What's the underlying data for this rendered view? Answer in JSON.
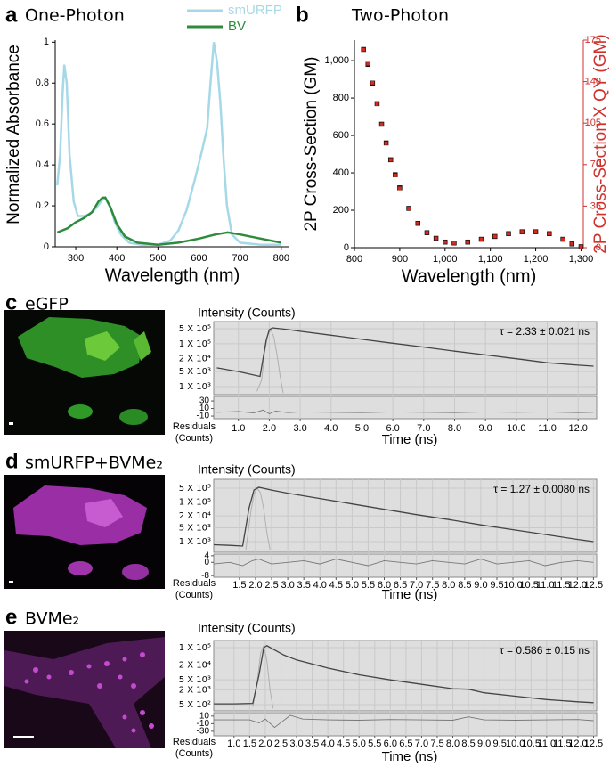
{
  "chart_data": [
    {
      "type": "line",
      "panel": "a",
      "title": "One-Photon",
      "xlabel": "Wavelength (nm)",
      "ylabel": "Normalized Absorbance",
      "xlim": [
        250,
        820
      ],
      "ylim": [
        0,
        1.01
      ],
      "xticks": [
        300,
        400,
        500,
        600,
        700,
        800
      ],
      "yticks": [
        0,
        0.2,
        0.4,
        0.6,
        0.8,
        1
      ],
      "series": [
        {
          "name": "smURFP",
          "color": "#a6d9e8",
          "x": [
            255,
            262,
            268,
            272,
            278,
            285,
            295,
            305,
            320,
            335,
            350,
            365,
            372,
            385,
            395,
            410,
            430,
            460,
            500,
            530,
            550,
            570,
            590,
            605,
            620,
            628,
            636,
            644,
            652,
            660,
            668,
            680,
            700,
            750,
            800
          ],
          "values": [
            0.3,
            0.45,
            0.75,
            0.89,
            0.8,
            0.45,
            0.22,
            0.15,
            0.15,
            0.16,
            0.19,
            0.23,
            0.24,
            0.19,
            0.12,
            0.06,
            0.02,
            0.01,
            0.01,
            0.03,
            0.08,
            0.18,
            0.33,
            0.45,
            0.58,
            0.8,
            1,
            0.9,
            0.7,
            0.42,
            0.2,
            0.06,
            0.02,
            0.01,
            0.01
          ]
        },
        {
          "name": "BV",
          "color": "#2e8b3e",
          "x": [
            255,
            280,
            300,
            320,
            340,
            355,
            365,
            372,
            385,
            400,
            420,
            450,
            500,
            550,
            600,
            640,
            670,
            700,
            750,
            800
          ],
          "values": [
            0.07,
            0.09,
            0.12,
            0.14,
            0.17,
            0.22,
            0.24,
            0.24,
            0.19,
            0.11,
            0.05,
            0.02,
            0.01,
            0.02,
            0.04,
            0.06,
            0.07,
            0.06,
            0.04,
            0.02
          ]
        }
      ]
    },
    {
      "type": "scatter",
      "panel": "b",
      "title": "Two-Photon",
      "xlabel": "Wavelength (nm)",
      "ylabel": "2P Cross-Section (GM)",
      "y2label": "2P Cross-Section X QY (GM)",
      "xlim": [
        800,
        1305
      ],
      "ylim": [
        0,
        1110
      ],
      "y2lim": [
        0,
        175
      ],
      "xticks": [
        800,
        900,
        {
          "value": 1000,
          "label": "1,000"
        },
        {
          "value": 1100,
          "label": "1,100"
        },
        {
          "value": 1200,
          "label": "1,200"
        },
        {
          "value": 1300,
          "label": "1,300"
        }
      ],
      "yticks": [
        0,
        200,
        400,
        600,
        800,
        {
          "value": 1000,
          "label": "1,000"
        }
      ],
      "y2ticks": [
        0,
        35,
        70,
        105,
        140,
        175
      ],
      "y2color": "#d0312d",
      "x": [
        820,
        830,
        840,
        850,
        860,
        870,
        880,
        890,
        900,
        920,
        940,
        960,
        980,
        1000,
        1020,
        1050,
        1080,
        1110,
        1140,
        1170,
        1200,
        1230,
        1260,
        1280,
        1300
      ],
      "series": [
        {
          "color": "#111111",
          "values": [
            1060,
            980,
            880,
            770,
            660,
            560,
            470,
            390,
            320,
            210,
            130,
            80,
            50,
            30,
            25,
            30,
            45,
            60,
            75,
            85,
            85,
            75,
            45,
            20,
            5
          ]
        },
        {
          "color": "#d42a20",
          "axis": "y2",
          "values": [
            167,
            155,
            139,
            121,
            104,
            88,
            74,
            61,
            50,
            33,
            20.5,
            12.6,
            7.9,
            4.7,
            3.9,
            4.7,
            7.1,
            9.5,
            11.8,
            13.4,
            13.4,
            11.8,
            7.1,
            3.2,
            0.8
          ]
        }
      ]
    },
    {
      "type": "decay",
      "panel": "c",
      "title": "eGFP",
      "plot_title": "Intensity (Counts)",
      "annotation": "τ = 2.33 ± 0.021 ns",
      "xlabel": "Time (ns)",
      "residuals_label": [
        "Residuals",
        "(Counts)"
      ],
      "log_y": true,
      "grid": true,
      "xlim": [
        0.2,
        12.6
      ],
      "ylim": [
        420,
        1080000
      ],
      "xticks": [
        {
          "value": 1,
          "label": "1.0"
        },
        {
          "value": 2,
          "label": "2.0"
        },
        {
          "value": 3,
          "label": "3.0"
        },
        {
          "value": 4,
          "label": "4.0"
        },
        {
          "value": 5,
          "label": "5.0"
        },
        {
          "value": 6,
          "label": "6.0"
        },
        {
          "value": 7,
          "label": "7.0"
        },
        {
          "value": 8,
          "label": "8.0"
        },
        {
          "value": 9,
          "label": "9.0"
        },
        {
          "value": 10,
          "label": "10.0"
        },
        {
          "value": 11,
          "label": "11.0"
        },
        {
          "value": 12,
          "label": "12.0"
        }
      ],
      "yticks": [
        {
          "value": 500000,
          "label": "5 X 10⁵"
        },
        {
          "value": 100000,
          "label": "1 X 10⁵"
        },
        {
          "value": 20000,
          "label": "2 X 10⁴"
        },
        {
          "value": 5000,
          "label": "5 X 10³"
        },
        {
          "value": 1000,
          "label": "1 X 10³"
        }
      ],
      "series": [
        {
          "color": "#444444",
          "x": [
            0.3,
            1.0,
            1.7,
            1.9,
            2.0,
            2.1,
            2.5,
            3,
            4,
            5,
            6,
            7,
            8,
            9,
            10,
            11,
            12,
            12.5
          ],
          "values": [
            7500,
            5000,
            3000,
            150000,
            450000,
            550000,
            480000,
            380000,
            250000,
            160000,
            105000,
            70000,
            45000,
            30000,
            20000,
            13000,
            10000,
            9000
          ]
        },
        {
          "color": "#b0b0b0",
          "x": [
            1.6,
            1.75,
            1.85,
            1.95,
            2.05,
            2.15,
            2.25,
            2.35,
            2.45
          ],
          "values": [
            600,
            2000,
            40000,
            250000,
            450000,
            200000,
            30000,
            3000,
            500
          ]
        }
      ],
      "residuals": {
        "ylim": [
          -17,
          42
        ],
        "yticks": [
          30,
          10,
          -10
        ],
        "color": "#777777",
        "x": [
          0.3,
          1,
          1.5,
          1.8,
          2.0,
          2.2,
          2.6,
          3,
          4,
          5,
          6,
          7,
          8,
          9,
          10,
          11,
          12,
          12.5
        ],
        "values": [
          0,
          2,
          -2,
          6,
          -4,
          3,
          -1,
          1,
          0,
          -1,
          1,
          0,
          -1,
          1,
          0,
          1,
          -1,
          0
        ]
      }
    },
    {
      "type": "decay",
      "panel": "d",
      "title": "smURFP+BVMe₂",
      "plot_title": "Intensity (Counts)",
      "annotation": "τ = 1.27 ± 0.0080 ns",
      "xlabel": "Time (ns)",
      "residuals_label": [
        "Residuals",
        "(Counts)"
      ],
      "log_y": true,
      "grid": true,
      "xlim": [
        0.7,
        12.6
      ],
      "ylim": [
        290,
        1400000
      ],
      "xticks": [
        1.5,
        {
          "value": 2,
          "label": "2.0"
        },
        2.5,
        {
          "value": 3,
          "label": "3.0"
        },
        3.5,
        {
          "value": 4,
          "label": "4.0"
        },
        4.5,
        {
          "value": 5,
          "label": "5.0"
        },
        5.5,
        {
          "value": 6,
          "label": "6.0"
        },
        6.5,
        {
          "value": 7,
          "label": "7.0"
        },
        7.5,
        {
          "value": 8,
          "label": "8.0"
        },
        8.5,
        {
          "value": 9,
          "label": "9.0"
        },
        9.5,
        {
          "value": 10,
          "label": "10.0"
        },
        10.5,
        {
          "value": 11,
          "label": "11.0"
        },
        11.5,
        {
          "value": 12,
          "label": "12.0"
        },
        12.5
      ],
      "yticks": [
        {
          "value": 500000,
          "label": "5 X 10⁵"
        },
        {
          "value": 100000,
          "label": "1 X 10⁵"
        },
        {
          "value": 20000,
          "label": "2 X 10⁴"
        },
        {
          "value": 5000,
          "label": "5 X 10³"
        },
        {
          "value": 1000,
          "label": "1 X 10³"
        }
      ],
      "series": [
        {
          "color": "#444444",
          "x": [
            0.7,
            1.2,
            1.6,
            1.8,
            1.95,
            2.1,
            2.5,
            3,
            4,
            5,
            6,
            7,
            8,
            9,
            10,
            11,
            12,
            12.5
          ],
          "values": [
            700,
            650,
            600,
            50000,
            400000,
            550000,
            400000,
            280000,
            150000,
            80000,
            43000,
            23000,
            13000,
            7000,
            4000,
            2300,
            1300,
            1000
          ]
        },
        {
          "color": "#b0b0b0",
          "x": [
            1.7,
            1.85,
            1.95,
            2.05,
            2.15,
            2.25,
            2.35,
            2.45
          ],
          "values": [
            400,
            30000,
            250000,
            500000,
            300000,
            50000,
            3000,
            400
          ]
        }
      ],
      "residuals": {
        "ylim": [
          -9,
          5
        ],
        "yticks": [
          4,
          0,
          -8
        ],
        "color": "#777777",
        "x": [
          0.7,
          1.2,
          1.6,
          1.9,
          2.1,
          2.5,
          3,
          3.5,
          4,
          4.5,
          5,
          5.5,
          6,
          6.5,
          7,
          7.5,
          8,
          8.5,
          9,
          9.5,
          10,
          10.5,
          11,
          11.5,
          12,
          12.5
        ],
        "values": [
          -1,
          0,
          -2,
          1,
          2,
          -1,
          0,
          1,
          -1,
          2,
          0,
          -2,
          1,
          0,
          -1,
          1,
          0,
          -1,
          2,
          -1,
          0,
          1,
          -2,
          0,
          1,
          0
        ]
      }
    },
    {
      "type": "decay",
      "panel": "e",
      "title": "BVMe₂",
      "plot_title": "Intensity (Counts)",
      "annotation": "τ = 0.586 ± 0.15 ns",
      "xlabel": "Time (ns)",
      "residuals_label": [
        "Residuals",
        "(Counts)"
      ],
      "log_y": true,
      "grid": true,
      "xlim": [
        0.35,
        12.6
      ],
      "ylim": [
        280,
        194000
      ],
      "xticks": [
        {
          "value": 1,
          "label": "1.0"
        },
        1.5,
        {
          "value": 2,
          "label": "2.0"
        },
        2.5,
        {
          "value": 3,
          "label": "3.0"
        },
        3.5,
        {
          "value": 4,
          "label": "4.0"
        },
        4.5,
        {
          "value": 5,
          "label": "5.0"
        },
        5.5,
        {
          "value": 6,
          "label": "6.0"
        },
        6.5,
        {
          "value": 7,
          "label": "7.0"
        },
        7.5,
        {
          "value": 8,
          "label": "8.0"
        },
        8.5,
        {
          "value": 9,
          "label": "9.0"
        },
        9.5,
        {
          "value": 10,
          "label": "10.0"
        },
        10.5,
        {
          "value": 11,
          "label": "11.0"
        },
        11.5,
        {
          "value": 12,
          "label": "12.0"
        },
        12.5
      ],
      "yticks": [
        {
          "value": 100000,
          "label": "1 X 10⁵"
        },
        {
          "value": 20000,
          "label": "2 X 10⁴"
        },
        {
          "value": 5000,
          "label": "5 X 10³"
        },
        {
          "value": 2000,
          "label": "2 X 10³"
        },
        {
          "value": 500,
          "label": "5 X 10²"
        }
      ],
      "series": [
        {
          "color": "#444444",
          "x": [
            0.35,
            1.0,
            1.6,
            1.8,
            1.95,
            2.05,
            2.3,
            2.6,
            3,
            4,
            5,
            6,
            7,
            8,
            8.5,
            9,
            10,
            11,
            12,
            12.5
          ],
          "values": [
            540,
            540,
            560,
            8000,
            100000,
            120000,
            80000,
            50000,
            32000,
            15000,
            8000,
            5000,
            3300,
            2200,
            2100,
            1500,
            1100,
            800,
            650,
            600
          ]
        },
        {
          "color": "#b0b0b0",
          "x": [
            1.6,
            1.75,
            1.85,
            1.95,
            2.05,
            2.15,
            2.25
          ],
          "values": [
            400,
            5000,
            60000,
            120000,
            30000,
            2000,
            350
          ]
        }
      ],
      "residuals": {
        "ylim": [
          -42,
          19
        ],
        "yticks": [
          10,
          -10,
          -30
        ],
        "color": "#777777",
        "x": [
          0.35,
          1,
          1.5,
          1.8,
          2.0,
          2.3,
          2.8,
          3.2,
          4,
          5,
          6,
          7,
          8,
          8.5,
          9,
          10,
          11,
          12,
          12.5
        ],
        "values": [
          0,
          0,
          0,
          -8,
          2,
          -20,
          12,
          2,
          0,
          -1,
          1,
          0,
          -1,
          8,
          0,
          -1,
          0,
          1,
          -2
        ]
      }
    }
  ]
}
